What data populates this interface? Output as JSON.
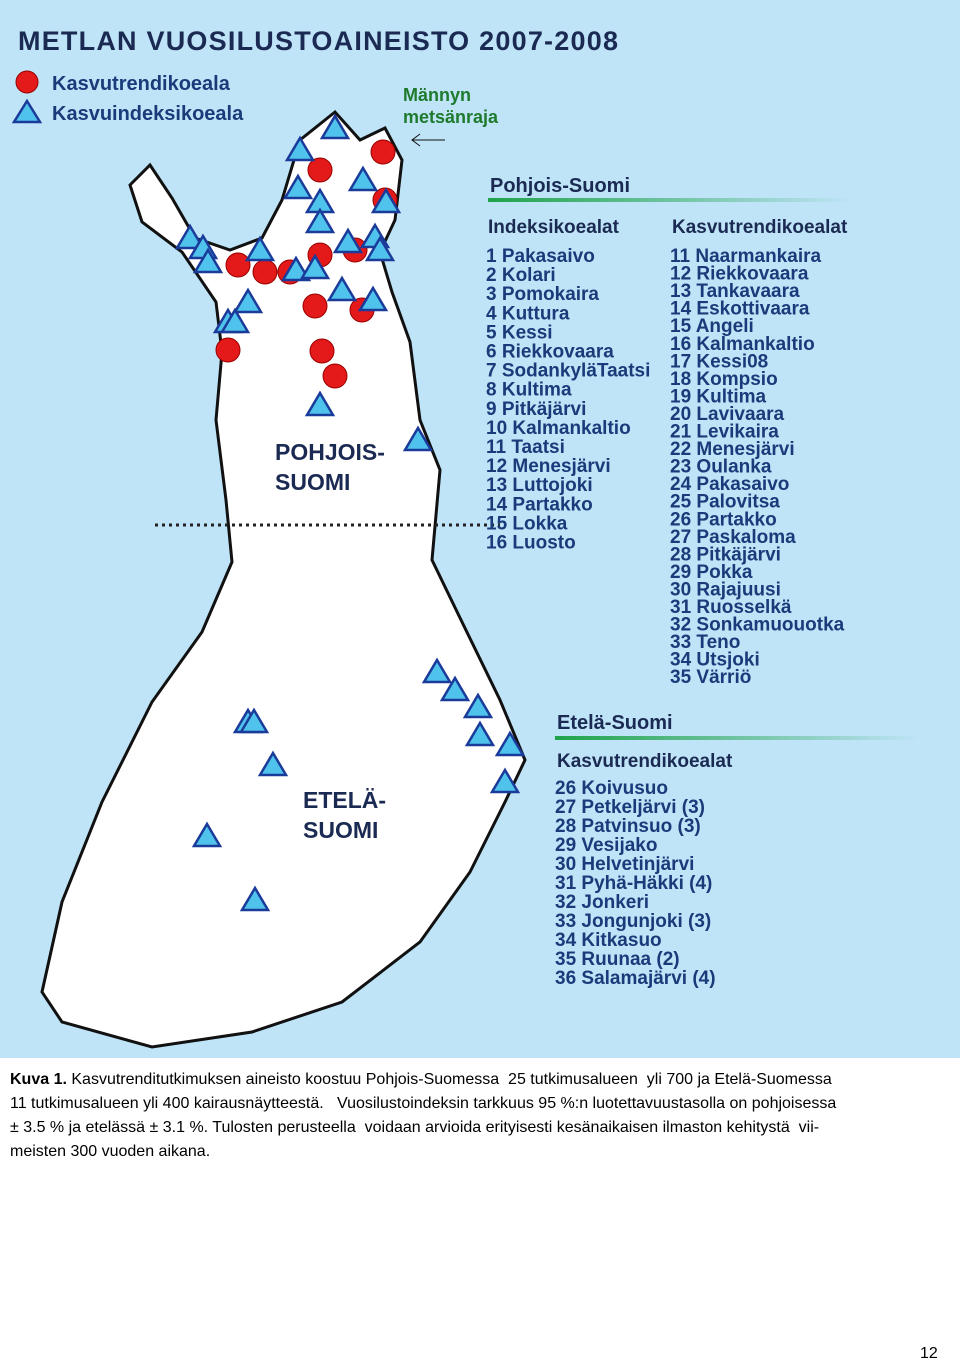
{
  "figure": {
    "title": "METLAN VUOSILUSTOAINEISTO 2007-2008",
    "legend": [
      "Kasvutrendikoeala",
      "Kasvuindeksikoeala"
    ],
    "treeline": [
      "Männyn",
      "metsänraja"
    ],
    "map_labels": {
      "north": [
        "POHJOIS-",
        "SUOMI"
      ],
      "south": [
        "ETELÄ-",
        "SUOMI"
      ]
    },
    "north": {
      "header": "Pohjois-Suomi",
      "index_header": "Indeksikoealat",
      "trend_header": "Kasvutrendikoealat",
      "index_sites": [
        "1 Pakasaivo",
        "2 Kolari",
        "3 Pomokaira",
        "4 Kuttura",
        "5 Kessi",
        "6 Riekkovaara",
        "7 SodankyläTaatsi",
        "8 Kultima",
        "9 Pitkäjärvi",
        "10 Kalmankaltio",
        "11 Taatsi",
        "12 Menesjärvi",
        "13 Luttojoki",
        "14 Partakko",
        "15 Lokka",
        "16 Luosto"
      ],
      "trend_sites": [
        "11 Naarmankaira",
        "12 Riekkovaara",
        "13 Tankavaara",
        "14 Eskottivaara",
        "15 Angeli",
        "16 Kalmankaltio",
        "17 Kessi08",
        "18 Kompsio",
        "19 Kultima",
        "20 Lavivaara",
        "21 Levikaira",
        "22 Menesjärvi",
        "23 Oulanka",
        "24 Pakasaivo",
        "25 Palovitsa",
        "26 Partakko",
        "27 Paskaloma",
        "28 Pitkäjärvi",
        "29 Pokka",
        "30 Rajajuusi",
        "31 Ruosselkä",
        "32 Sonkamuouotka",
        "33 Teno",
        "34 Utsjoki",
        "35 Värriö"
      ]
    },
    "south": {
      "header": "Etelä-Suomi",
      "trend_header": "Kasvutrendikoealat",
      "trend_sites": [
        "26 Koivusuo",
        "27 Petkeljärvi (3)",
        "28 Patvinsuo (3)",
        "29 Vesijako",
        "30 Helvetinjärvi",
        "31 Pyhä-Häkki (4)",
        "32 Jonkeri",
        "33 Jongunjoki (3)",
        "34 Kitkasuo",
        "35 Ruunaa (2)",
        "36 Salamajärvi (4)"
      ]
    }
  },
  "caption": {
    "label": "Kuva 1.",
    "lines": [
      "Kasvutrenditutkimuksen aineisto koostuu Pohjois-Suomessa  25 tutkimusalueen  yli 700 ja Etelä-Suomessa",
      "11 tutkimusalueen yli 400 kairausnäytteestä.   Vuosilustoindeksin tarkkuus 95 %:n luotettavuustasolla on pohjoisessa",
      "± 3.5 % ja etelässä ± 3.1 %. Tulosten perusteella  voidaan arvioida erityisesti kesänaikaisen ilmaston kehitystä  vii-",
      "meisten 300 vuoden aikana."
    ]
  },
  "page_number": "12"
}
